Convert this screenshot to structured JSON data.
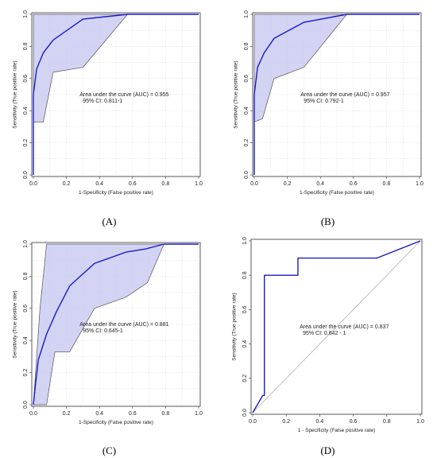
{
  "chart_data": [
    {
      "panel_label": "(A)",
      "type": "line",
      "xlabel": "1-Specificity (False positive rate)",
      "ylabel": "Sensitivity (True positive rate)",
      "xlim": [
        0,
        1
      ],
      "ylim": [
        0,
        1
      ],
      "xticks": [
        "0.0",
        "0.2",
        "0.4",
        "0.6",
        "0.8",
        "1.0"
      ],
      "yticks": [
        "0.0",
        "0.2",
        "0.4",
        "0.6",
        "0.8",
        "1.0"
      ],
      "grid": true,
      "roc": {
        "x": [
          0,
          0,
          0.02,
          0.06,
          0.12,
          0.3,
          0.57,
          1
        ],
        "y": [
          0,
          0.5,
          0.66,
          0.76,
          0.84,
          0.97,
          1,
          1
        ]
      },
      "ci_upper": {
        "x": [
          0,
          0,
          0.57,
          1
        ],
        "y": [
          0,
          1,
          1,
          1
        ]
      },
      "ci_lower": {
        "x": [
          0,
          0,
          0.06,
          0.12,
          0.3,
          0.57
        ],
        "y": [
          0,
          0.33,
          0.33,
          0.64,
          0.67,
          1
        ]
      },
      "annotation": {
        "line1": "Area under the curve (AUC) = 0.955",
        "line2": "95% CI: 0.811-1"
      },
      "colors": {
        "roc": "#1a1acc",
        "band": "#c4c4f0",
        "band_edge": "#555555"
      }
    },
    {
      "panel_label": "(B)",
      "type": "line",
      "xlabel": "1-Specificity (False positive rate)",
      "ylabel": "Sensitivity (True positive rate)",
      "xlim": [
        0,
        1
      ],
      "ylim": [
        0,
        1
      ],
      "xticks": [
        "0.0",
        "0.2",
        "0.4",
        "0.6",
        "0.8",
        "1.0"
      ],
      "yticks": [
        "0.0",
        "0.2",
        "0.4",
        "0.6",
        "0.8",
        "1.0"
      ],
      "grid": true,
      "roc": {
        "x": [
          0,
          0,
          0.02,
          0.06,
          0.12,
          0.3,
          0.56,
          1
        ],
        "y": [
          0,
          0.5,
          0.67,
          0.76,
          0.85,
          0.95,
          1,
          1
        ]
      },
      "ci_upper": {
        "x": [
          0,
          0,
          0.56,
          1
        ],
        "y": [
          0,
          1,
          1,
          1
        ]
      },
      "ci_lower": {
        "x": [
          0,
          0,
          0.05,
          0.12,
          0.3,
          0.56
        ],
        "y": [
          0,
          0.33,
          0.35,
          0.6,
          0.67,
          1
        ]
      },
      "annotation": {
        "line1": "Area under the curve (AUC) = 0.957",
        "line2": "95% CI: 0.792-1"
      },
      "colors": {
        "roc": "#1a1acc",
        "band": "#c4c4f0",
        "band_edge": "#555555"
      }
    },
    {
      "panel_label": "(C)",
      "type": "line",
      "xlabel": "1-Specificity (False positive rate)",
      "ylabel": "Sensitivity (True positive rate)",
      "xlim": [
        0,
        1
      ],
      "ylim": [
        0,
        1
      ],
      "xticks": [
        "0.0",
        "0.2",
        "0.4",
        "0.6",
        "0.8",
        "1.0"
      ],
      "yticks": [
        "0.0",
        "0.2",
        "0.4",
        "0.6",
        "0.8",
        "1.0"
      ],
      "grid": true,
      "roc": {
        "x": [
          0,
          0.01,
          0.03,
          0.08,
          0.14,
          0.22,
          0.37,
          0.56,
          0.68,
          0.79,
          1
        ],
        "y": [
          0,
          0.1,
          0.28,
          0.44,
          0.58,
          0.74,
          0.88,
          0.95,
          0.97,
          1,
          1
        ]
      },
      "ci_upper": {
        "x": [
          0,
          0.04,
          0.08,
          0.79,
          1
        ],
        "y": [
          0,
          0.6,
          1,
          1,
          1
        ]
      },
      "ci_lower": {
        "x": [
          0,
          0.08,
          0.13,
          0.22,
          0.37,
          0.56,
          0.69,
          0.79
        ],
        "y": [
          0,
          0,
          0.33,
          0.33,
          0.6,
          0.67,
          0.76,
          1
        ]
      },
      "annotation": {
        "line1": "Area under the curve (AUC) = 0.881",
        "line2": "95% CI: 0.645-1"
      },
      "colors": {
        "roc": "#1a1acc",
        "band": "#c4c4f0",
        "band_edge": "#555555"
      }
    },
    {
      "panel_label": "(D)",
      "type": "line",
      "xlabel": "1 - Specificity (False positive rate)",
      "ylabel": "Sensitivity (True positive rate)",
      "xlim": [
        0,
        1
      ],
      "ylim": [
        0,
        1
      ],
      "xticks": [
        "0.0",
        "0.2",
        "0.4",
        "0.6",
        "0.8",
        "1.0"
      ],
      "yticks": [
        "0.0",
        "0.2",
        "0.4",
        "0.6",
        "0.8",
        "1.0"
      ],
      "grid": false,
      "roc": {
        "x": [
          0,
          0.06,
          0.07,
          0.07,
          0.27,
          0.27,
          0.74,
          1
        ],
        "y": [
          0,
          0.1,
          0.1,
          0.8,
          0.8,
          0.9,
          0.9,
          1
        ]
      },
      "diagonal": {
        "x": [
          0,
          1
        ],
        "y": [
          0,
          1
        ]
      },
      "annotation": {
        "line1": "Area under the curve (AUC) = 0.837",
        "line2": "95% CI: 0.642 - 1"
      },
      "colors": {
        "roc": "#1a1acc",
        "diagonal": "#b0b0b0"
      }
    }
  ]
}
